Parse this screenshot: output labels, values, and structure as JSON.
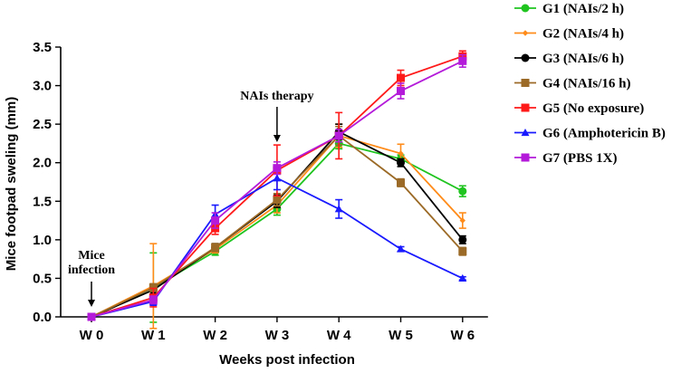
{
  "chart_data": {
    "type": "line",
    "title": "",
    "xlabel": "Weeks post infection",
    "ylabel": "Mice footpad sweling (mm)",
    "categories": [
      "W 0",
      "W 1",
      "W 2",
      "W 3",
      "W 4",
      "W 5",
      "W 6"
    ],
    "ylim": [
      0,
      3.5
    ],
    "yticks": [
      "0.0",
      "0.5",
      "1.0",
      "1.5",
      "2.0",
      "2.5",
      "3.0",
      "3.5"
    ],
    "legend_position": "right",
    "annotations": [
      {
        "lines": [
          "Mice",
          "infection"
        ],
        "category_index": 0
      },
      {
        "lines": [
          "NAIs therapy"
        ],
        "category_index": 3
      }
    ],
    "series": [
      {
        "name": "G1 (NAIs/2 h)",
        "color": "#1fc41f",
        "marker": "circle",
        "values": [
          0.0,
          0.38,
          0.85,
          1.4,
          2.25,
          2.05,
          1.63
        ],
        "errors": [
          0.0,
          0.45,
          0.05,
          0.08,
          0.07,
          0.05,
          0.07
        ]
      },
      {
        "name": "G2 (NAIs/4 h)",
        "color": "#ff8c1a",
        "marker": "diamond",
        "values": [
          0.0,
          0.4,
          0.88,
          1.45,
          2.35,
          2.12,
          1.25
        ],
        "errors": [
          0.0,
          0.55,
          0.05,
          0.1,
          0.15,
          0.12,
          0.1
        ]
      },
      {
        "name": "G3 (NAIs/6 h)",
        "color": "#000000",
        "marker": "circle",
        "values": [
          0.0,
          0.35,
          0.9,
          1.5,
          2.4,
          2.0,
          1.0
        ],
        "errors": [
          0.0,
          0.05,
          0.05,
          0.08,
          0.1,
          0.05,
          0.05
        ]
      },
      {
        "name": "G4 (NAIs/16 h)",
        "color": "#9b6a26",
        "marker": "square",
        "values": [
          0.0,
          0.38,
          0.9,
          1.52,
          2.35,
          1.74,
          0.85
        ],
        "errors": [
          0.0,
          0.05,
          0.05,
          0.08,
          0.12,
          0.05,
          0.05
        ]
      },
      {
        "name": "G5 (No exposure)",
        "color": "#ff1a1a",
        "marker": "square",
        "values": [
          0.0,
          0.25,
          1.15,
          1.9,
          2.35,
          3.1,
          3.38
        ],
        "errors": [
          0.0,
          0.12,
          0.08,
          0.33,
          0.3,
          0.1,
          0.07
        ]
      },
      {
        "name": "G6 (Amphotericin B)",
        "color": "#1a1aff",
        "marker": "triangle",
        "values": [
          0.0,
          0.2,
          1.33,
          1.8,
          1.4,
          0.88,
          0.5
        ],
        "errors": [
          0.0,
          0.05,
          0.12,
          0.15,
          0.12,
          0.03,
          0.02
        ]
      },
      {
        "name": "G7 (PBS 1X)",
        "color": "#b31ad9",
        "marker": "square",
        "values": [
          0.0,
          0.22,
          1.25,
          1.93,
          2.35,
          2.93,
          3.32
        ],
        "errors": [
          0.0,
          0.05,
          0.1,
          0.08,
          0.08,
          0.1,
          0.08
        ]
      }
    ]
  }
}
